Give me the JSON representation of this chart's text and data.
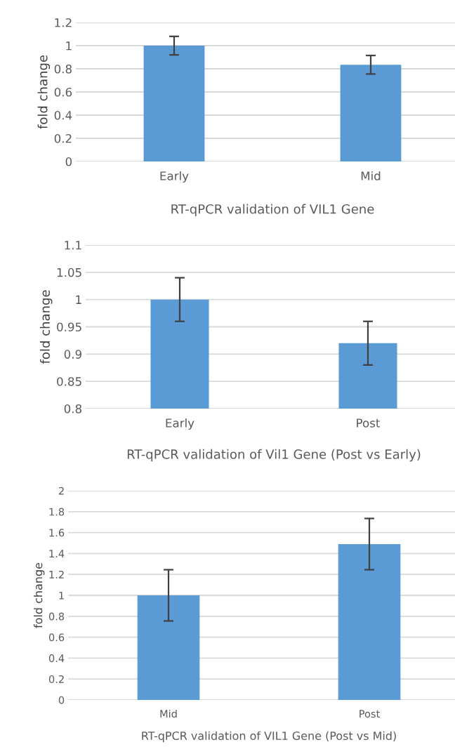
{
  "chart_data": [
    {
      "type": "bar",
      "xlabel": "RT-qPCR validation of VIL1 Gene",
      "ylabel": "fold change",
      "categories": [
        "Early",
        "Mid"
      ],
      "values": [
        1,
        0.835
      ],
      "errors": [
        0.08,
        0.08
      ],
      "color": "#5b9bd5",
      "ylim": [
        0,
        1.2
      ],
      "yticks": [
        0,
        0.2,
        0.4,
        0.6,
        0.8,
        1,
        1.2
      ],
      "grid": "y"
    },
    {
      "type": "bar",
      "xlabel": "RT-qPCR validation of Vil1 Gene (Post vs Early)",
      "ylabel": "fold change",
      "categories": [
        "Early",
        "Post"
      ],
      "values": [
        1,
        0.92
      ],
      "errors": [
        0.04,
        0.04
      ],
      "color": "#5b9bd5",
      "ylim": [
        0.8,
        1.1
      ],
      "yticks": [
        0.8,
        0.85,
        0.9,
        0.95,
        1,
        1.05,
        1.1
      ],
      "grid": "y"
    },
    {
      "type": "bar",
      "xlabel": "RT-qPCR validation of VIL1 Gene (Post vs Mid)",
      "ylabel": "fold change",
      "categories": [
        "Mid",
        "Post"
      ],
      "values": [
        1,
        1.49
      ],
      "errors": [
        0.245,
        0.245
      ],
      "color": "#5b9bd5",
      "ylim": [
        0,
        2
      ],
      "yticks": [
        0,
        0.2,
        0.4,
        0.6,
        0.8,
        1,
        1.2,
        1.4,
        1.6,
        1.8,
        2
      ],
      "grid": "y"
    }
  ]
}
